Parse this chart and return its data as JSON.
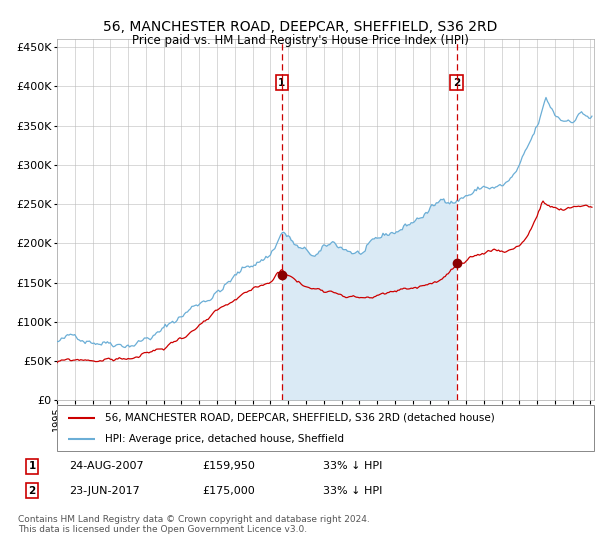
{
  "title": "56, MANCHESTER ROAD, DEEPCAR, SHEFFIELD, S36 2RD",
  "subtitle": "Price paid vs. HM Land Registry's House Price Index (HPI)",
  "legend_line1": "56, MANCHESTER ROAD, DEEPCAR, SHEFFIELD, S36 2RD (detached house)",
  "legend_line2": "HPI: Average price, detached house, Sheffield",
  "footnote": "Contains HM Land Registry data © Crown copyright and database right 2024.\nThis data is licensed under the Open Government Licence v3.0.",
  "annotation1_date": "24-AUG-2007",
  "annotation1_price": "£159,950",
  "annotation1_hpi": "33% ↓ HPI",
  "annotation2_date": "23-JUN-2017",
  "annotation2_price": "£175,000",
  "annotation2_hpi": "33% ↓ HPI",
  "sale1_year": 2007.65,
  "sale1_value": 159950,
  "sale2_year": 2017.47,
  "sale2_value": 175000,
  "ylim": [
    0,
    460000
  ],
  "hpi_color": "#6baed6",
  "hpi_fill_color": "#daeaf5",
  "property_color": "#cc0000",
  "marker_color": "#8b0000",
  "vline_color": "#cc0000",
  "grid_color": "#bbbbbb",
  "background_color": "#ffffff",
  "title_fontsize": 10,
  "subtitle_fontsize": 8.5,
  "axis_fontsize": 8,
  "tick_fontsize": 7,
  "legend_fontsize": 7.5,
  "footnote_fontsize": 6.5,
  "hpi_anchors": {
    "1995.0": 75000,
    "1997.0": 81000,
    "1999.0": 89000,
    "2001.0": 108000,
    "2003.0": 143000,
    "2005.0": 178000,
    "2007.0": 208000,
    "2007.7": 240000,
    "2008.5": 218000,
    "2009.0": 208000,
    "2009.5": 202000,
    "2010.5": 212000,
    "2011.0": 208000,
    "2012.0": 202000,
    "2013.0": 208000,
    "2014.0": 218000,
    "2015.0": 232000,
    "2016.0": 248000,
    "2017.0": 262000,
    "2017.5": 265000,
    "2018.0": 272000,
    "2019.0": 282000,
    "2020.0": 282000,
    "2020.5": 288000,
    "2021.0": 302000,
    "2021.5": 322000,
    "2022.0": 345000,
    "2022.5": 378000,
    "2023.0": 358000,
    "2023.5": 352000,
    "2024.0": 358000,
    "2024.5": 368000,
    "2025.0": 362000
  },
  "prop_anchors": {
    "1995.0": 48000,
    "1996.0": 49000,
    "1997.0": 50500,
    "1998.0": 52000,
    "1999.0": 54000,
    "2000.0": 59000,
    "2001.0": 66000,
    "2002.0": 81000,
    "2003.0": 96000,
    "2004.0": 109000,
    "2005.0": 119000,
    "2006.0": 129000,
    "2007.0": 141000,
    "2007.65": 159950,
    "2008.0": 154000,
    "2008.5": 146000,
    "2009.0": 138000,
    "2009.5": 136000,
    "2010.0": 138000,
    "2011.0": 138000,
    "2012.0": 135000,
    "2013.0": 138000,
    "2014.0": 141000,
    "2015.0": 146000,
    "2016.0": 153000,
    "2016.5": 158000,
    "2017.0": 166000,
    "2017.47": 175000,
    "2018.0": 174000,
    "2018.5": 178000,
    "2019.0": 183000,
    "2019.5": 188000,
    "2020.0": 188000,
    "2020.5": 191000,
    "2021.0": 198000,
    "2021.5": 213000,
    "2022.0": 238000,
    "2022.3": 256000,
    "2022.5": 250000,
    "2023.0": 246000,
    "2023.5": 241000,
    "2024.0": 243000,
    "2024.5": 246000,
    "2025.0": 246000
  }
}
